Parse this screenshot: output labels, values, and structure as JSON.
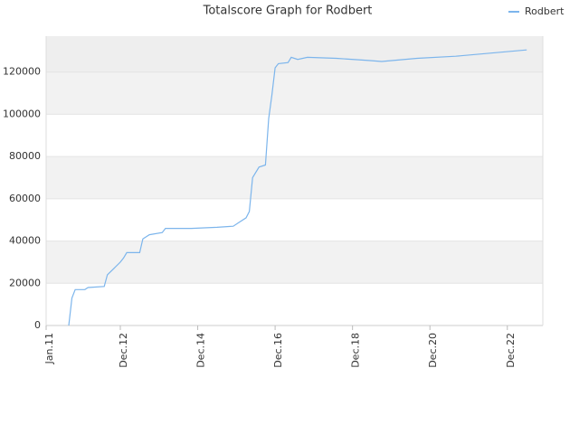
{
  "chart_data": {
    "type": "line",
    "title": "Totalscore Graph for Rodbert",
    "x": [
      "2011-08",
      "2011-09",
      "2011-10",
      "2012-01",
      "2012-02",
      "2012-07",
      "2012-08",
      "2012-10",
      "2012-12",
      "2013-01",
      "2013-02",
      "2013-06",
      "2013-07",
      "2013-09",
      "2014-01",
      "2014-02",
      "2014-10",
      "2015-06",
      "2015-11",
      "2016-01",
      "2016-03",
      "2016-04",
      "2016-05",
      "2016-07",
      "2016-09",
      "2016-10",
      "2016-11",
      "2016-12",
      "2017-01",
      "2017-04",
      "2017-05",
      "2017-07",
      "2017-10",
      "2018-07",
      "2019-05",
      "2019-09",
      "2020-08",
      "2021-08",
      "2022-07",
      "2023-06"
    ],
    "series": [
      {
        "name": "Rodbert",
        "color": "#7cb5ec",
        "values": [
          0,
          13000,
          17000,
          17000,
          18000,
          18500,
          24000,
          27000,
          30000,
          32000,
          34500,
          34500,
          41000,
          43000,
          44000,
          46000,
          46000,
          46500,
          47000,
          49000,
          51000,
          54000,
          70000,
          75000,
          76000,
          98000,
          109000,
          122000,
          124000,
          124500,
          127000,
          126000,
          127000,
          126500,
          125500,
          125000,
          126500,
          127500,
          129000,
          130500
        ]
      }
    ],
    "xlim": [
      "2011-01",
      "2023-11"
    ],
    "xticks": [
      {
        "value": "2011-01",
        "label": "Jan.11"
      },
      {
        "value": "2012-12",
        "label": "Dec.12"
      },
      {
        "value": "2014-12",
        "label": "Dec.14"
      },
      {
        "value": "2016-12",
        "label": "Dec.16"
      },
      {
        "value": "2018-12",
        "label": "Dec.18"
      },
      {
        "value": "2020-12",
        "label": "Dec.20"
      },
      {
        "value": "2022-12",
        "label": "Dec.22"
      }
    ],
    "ylim": [
      0,
      137000
    ],
    "yticks": [
      0,
      20000,
      40000,
      60000,
      80000,
      100000,
      120000
    ],
    "grid": true,
    "legend": "top-right"
  }
}
